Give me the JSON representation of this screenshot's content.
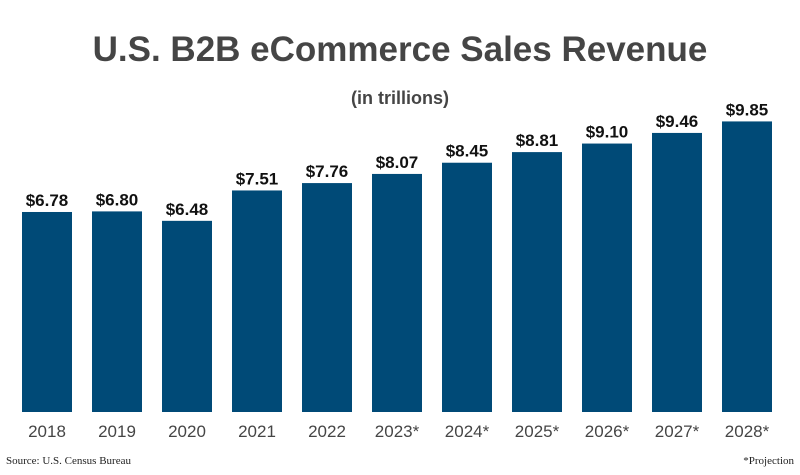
{
  "chart_data": {
    "type": "bar",
    "title": "U.S. B2B eCommerce Sales Revenue",
    "subtitle": "(in trillions)",
    "categories": [
      "2018",
      "2019",
      "2020",
      "2021",
      "2022",
      "2023*",
      "2024*",
      "2025*",
      "2026*",
      "2027*",
      "2028*"
    ],
    "values": [
      6.78,
      6.8,
      6.48,
      7.51,
      7.76,
      8.07,
      8.45,
      8.81,
      9.1,
      9.46,
      9.85
    ],
    "data_labels": [
      "$6.78",
      "$6.80",
      "$6.48",
      "$7.51",
      "$7.76",
      "$8.07",
      "$8.45",
      "$8.81",
      "$9.10",
      "$9.46",
      "$9.85"
    ],
    "ylim": [
      0,
      10
    ],
    "grid": false,
    "bar_color": "#004a77"
  },
  "footer": {
    "source": "Source: U.S. Census Bureau",
    "note": "*Projection"
  }
}
